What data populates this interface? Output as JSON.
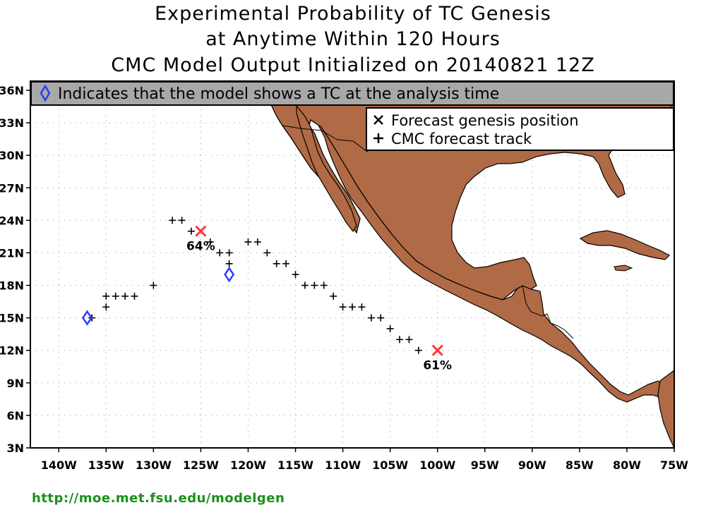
{
  "title": {
    "line1": "Experimental Probability of TC Genesis",
    "line2": "at Anytime Within 120 Hours",
    "line3": "CMC Model Output Initialized on 20140821 12Z"
  },
  "banner": {
    "text": "Indicates that the model shows a TC at the analysis time",
    "icon": "diamond-icon"
  },
  "legend": {
    "genesis_label": "Forecast genesis position",
    "track_label": "CMC forecast track"
  },
  "axes": {
    "lon_ticks": [
      "140W",
      "135W",
      "130W",
      "125W",
      "120W",
      "115W",
      "110W",
      "105W",
      "100W",
      "95W",
      "90W",
      "85W",
      "80W",
      "75W"
    ],
    "lat_ticks": [
      "3N",
      "6N",
      "9N",
      "12N",
      "15N",
      "18N",
      "21N",
      "24N",
      "27N",
      "30N",
      "33N",
      "36N"
    ]
  },
  "colors": {
    "land": "#b06a45",
    "genesis": "#ff3a3a",
    "analysis": "#2a3cff",
    "banner_bg": "#a8a8a8",
    "url": "#1a8f1a"
  },
  "genesis_points": [
    {
      "lon": -125,
      "lat": 23,
      "prob": "64%"
    },
    {
      "lon": -100,
      "lat": 12,
      "prob": "61%"
    }
  ],
  "analysis_points": [
    {
      "lon": -137,
      "lat": 15
    },
    {
      "lon": -122,
      "lat": 19
    }
  ],
  "track_points": [
    [
      -136.5,
      15
    ],
    [
      -135,
      16
    ],
    [
      -135,
      17
    ],
    [
      -134,
      17
    ],
    [
      -133,
      17
    ],
    [
      -132,
      17
    ],
    [
      -130,
      18
    ],
    [
      -128,
      24
    ],
    [
      -127,
      24
    ],
    [
      -126,
      23
    ],
    [
      -124,
      22
    ],
    [
      -123,
      21
    ],
    [
      -122,
      21
    ],
    [
      -122,
      20
    ],
    [
      -120,
      22
    ],
    [
      -119,
      22
    ],
    [
      -118,
      21
    ],
    [
      -117,
      20
    ],
    [
      -116,
      20
    ],
    [
      -115,
      19
    ],
    [
      -114,
      18
    ],
    [
      -113,
      18
    ],
    [
      -112,
      18
    ],
    [
      -111,
      17
    ],
    [
      -110,
      16
    ],
    [
      -109,
      16
    ],
    [
      -108,
      16
    ],
    [
      -107,
      15
    ],
    [
      -106,
      15
    ],
    [
      -105,
      14
    ],
    [
      -104,
      13
    ],
    [
      -103,
      13
    ],
    [
      -102,
      12
    ]
  ],
  "footer": {
    "url": "http://moe.met.fsu.edu/modelgen"
  }
}
